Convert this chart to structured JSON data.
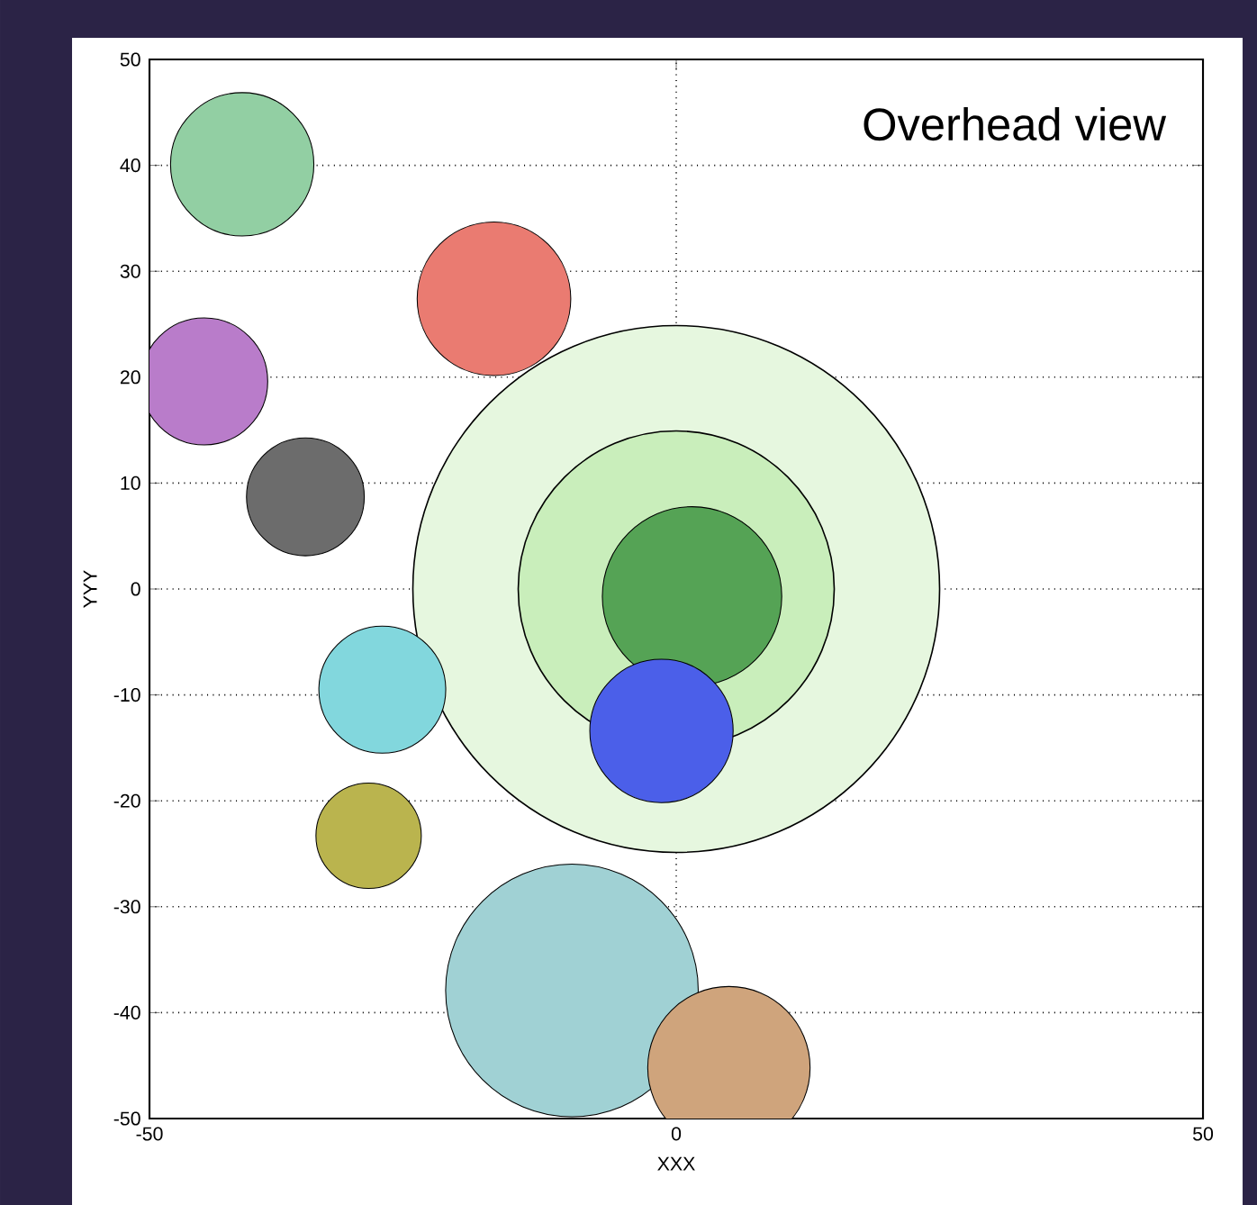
{
  "chart_data": {
    "type": "bubble",
    "xlabel": "XXX",
    "ylabel": "YYY",
    "annotations": [
      "Overhead view"
    ],
    "xlim": [
      -50,
      50
    ],
    "ylim": [
      -50,
      50
    ],
    "xticks": [
      -50,
      0,
      50
    ],
    "yticks": [
      -50,
      -40,
      -30,
      -20,
      -10,
      0,
      10,
      20,
      30,
      40,
      50
    ],
    "grid": true,
    "series": [
      {
        "x": [
          0,
          0
        ],
        "values": [
          0,
          0
        ],
        "sizes": [
          1,
          0.36
        ],
        "colors": [
          "#e6f7df",
          "#c9eebb"
        ]
      },
      {
        "x": [
          -41.2,
          -17.3,
          -44.8,
          -35.2,
          -27.9,
          -29.2,
          1.5,
          -1.4,
          -9.9,
          5
        ],
        "values": [
          40.1,
          27.4,
          19.6,
          8.7,
          -9.5,
          -23.3,
          -0.7,
          -13.4,
          -37.9,
          -45.2
        ],
        "sizes": [
          0.074,
          0.085,
          0.058,
          0.05,
          0.058,
          0.04,
          0.116,
          0.074,
          0.23,
          0.095
        ],
        "colors": [
          "#92cfa3",
          "#ea7b71",
          "#b97cca",
          "#6c6c6c",
          "#82d7dd",
          "#bab44e",
          "#55a355",
          "#4b5fe9",
          "#a0d1d4",
          "#cfa47c"
        ]
      }
    ]
  }
}
